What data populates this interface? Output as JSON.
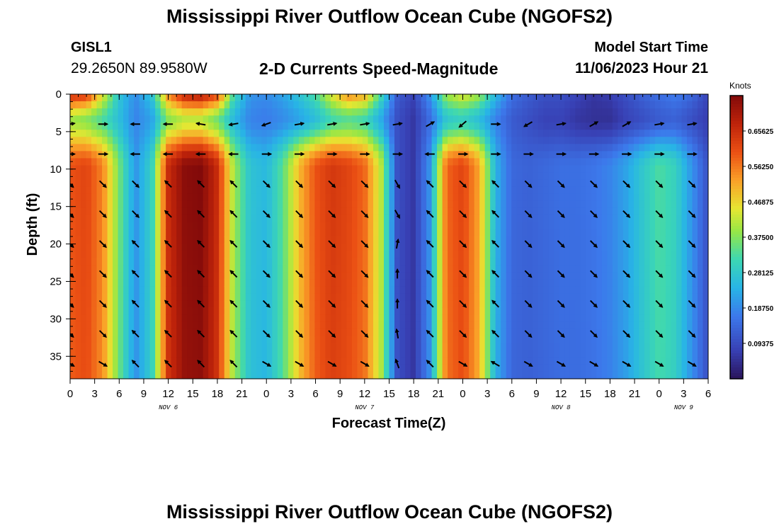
{
  "page": {
    "title": "Mississippi River Outflow Ocean Cube (NGOFS2)",
    "bottom_title": "Mississippi River Outflow Ocean Cube (NGOFS2)",
    "station_id": "GISL1",
    "station_location": "29.2650N  89.9580W",
    "chart_title": "2-D Currents Speed-Magnitude",
    "model_start_label": "Model Start Time",
    "model_start_time": "11/06/2023 Hour 21"
  },
  "chart_data": {
    "type": "heatmap",
    "title": "2-D Currents Speed-Magnitude",
    "xlabel": "Forecast Time(Z)",
    "ylabel": "Depth (ft)",
    "x_unit": "hours since 2023-11-06 00Z",
    "xlim": [
      0,
      78
    ],
    "ylim": [
      0,
      38
    ],
    "x_ticks": [
      0,
      3,
      6,
      9,
      12,
      15,
      18,
      21,
      24,
      27,
      30,
      33,
      36,
      39,
      42,
      45,
      48,
      51,
      54,
      57,
      60,
      63,
      66,
      69,
      72,
      75,
      78
    ],
    "x_tick_labels": [
      "0",
      "3",
      "6",
      "9",
      "12",
      "15",
      "18",
      "21",
      "0",
      "3",
      "6",
      "9",
      "12",
      "15",
      "18",
      "21",
      "0",
      "3",
      "6",
      "9",
      "12",
      "15",
      "18",
      "21",
      "0",
      "3",
      "6"
    ],
    "y_ticks": [
      0,
      5,
      10,
      15,
      20,
      25,
      30,
      35
    ],
    "y_tick_labels": [
      "0",
      "5",
      "10",
      "15",
      "20",
      "25",
      "30",
      "35"
    ],
    "date_labels": [
      {
        "hour": 12,
        "text": "NOV 6"
      },
      {
        "hour": 36,
        "text": "NOV 7"
      },
      {
        "hour": 60,
        "text": "NOV 8"
      },
      {
        "hour": 75,
        "text": "NOV 9"
      }
    ],
    "colorbar": {
      "unit": "Knots",
      "min": 0.0,
      "max": 0.75,
      "tick_values": [
        0.65625,
        0.5625,
        0.46875,
        0.375,
        0.28125,
        0.1875,
        0.09375
      ],
      "tick_labels": [
        "0.65625",
        "0.56250",
        "0.46875",
        "0.37500",
        "0.28125",
        "0.18750",
        "0.09375"
      ]
    },
    "times": [
      0,
      2,
      4,
      6,
      8,
      10,
      12,
      14,
      16,
      18,
      20,
      22,
      24,
      26,
      28,
      30,
      32,
      34,
      36,
      38,
      40,
      42,
      44,
      46,
      48,
      50,
      52,
      54,
      56,
      58,
      60,
      62,
      64,
      66,
      68,
      70,
      72,
      74,
      76,
      78
    ],
    "surface_speed": [
      0.66,
      0.64,
      0.45,
      0.27,
      0.19,
      0.27,
      0.55,
      0.68,
      0.7,
      0.62,
      0.32,
      0.2,
      0.19,
      0.22,
      0.27,
      0.33,
      0.45,
      0.55,
      0.52,
      0.32,
      0.12,
      0.08,
      0.2,
      0.4,
      0.45,
      0.4,
      0.25,
      0.15,
      0.12,
      0.1,
      0.1,
      0.08,
      0.06,
      0.07,
      0.1,
      0.13,
      0.15,
      0.17,
      0.14,
      0.08
    ],
    "near_surface_speed": [
      0.4,
      0.38,
      0.33,
      0.26,
      0.18,
      0.22,
      0.38,
      0.42,
      0.42,
      0.36,
      0.25,
      0.18,
      0.17,
      0.19,
      0.22,
      0.26,
      0.32,
      0.34,
      0.32,
      0.23,
      0.1,
      0.06,
      0.15,
      0.28,
      0.3,
      0.26,
      0.18,
      0.12,
      0.1,
      0.08,
      0.08,
      0.06,
      0.05,
      0.05,
      0.08,
      0.1,
      0.12,
      0.13,
      0.1,
      0.07
    ],
    "subsurface_speed": [
      0.6,
      0.62,
      0.55,
      0.36,
      0.2,
      0.3,
      0.66,
      0.74,
      0.75,
      0.66,
      0.4,
      0.27,
      0.25,
      0.34,
      0.5,
      0.6,
      0.64,
      0.62,
      0.58,
      0.42,
      0.1,
      0.06,
      0.2,
      0.58,
      0.62,
      0.52,
      0.24,
      0.14,
      0.13,
      0.14,
      0.15,
      0.15,
      0.16,
      0.18,
      0.22,
      0.28,
      0.33,
      0.3,
      0.2,
      0.1
    ],
    "vector_times": [
      0,
      4,
      8,
      12,
      16,
      20,
      24,
      28,
      32,
      36,
      40,
      44,
      48,
      52,
      56,
      60,
      64,
      68,
      72,
      76
    ],
    "vector_depths": [
      4,
      8,
      12,
      16,
      20,
      24,
      28,
      32,
      36
    ],
    "vector_direction_deg": {
      "depth_4": [
        80,
        90,
        270,
        270,
        280,
        260,
        250,
        80,
        80,
        80,
        80,
        60,
        230,
        90,
        240,
        80,
        60,
        60,
        80,
        80
      ],
      "depth_8": [
        90,
        90,
        270,
        270,
        270,
        270,
        90,
        90,
        90,
        90,
        90,
        270,
        90,
        90,
        90,
        90,
        90,
        90,
        90,
        90
      ],
      "depth_12": [
        135,
        135,
        135,
        315,
        315,
        315,
        135,
        135,
        135,
        135,
        150,
        315,
        135,
        315,
        135,
        135,
        135,
        135,
        135,
        135
      ],
      "depth_16": [
        135,
        135,
        135,
        315,
        315,
        315,
        135,
        135,
        135,
        135,
        150,
        315,
        135,
        315,
        135,
        135,
        135,
        135,
        135,
        135
      ],
      "depth_20": [
        135,
        135,
        315,
        315,
        315,
        315,
        135,
        135,
        135,
        135,
        10,
        315,
        135,
        315,
        135,
        135,
        135,
        135,
        135,
        135
      ],
      "depth_24": [
        135,
        135,
        315,
        315,
        315,
        315,
        135,
        135,
        135,
        135,
        0,
        315,
        135,
        315,
        135,
        135,
        135,
        135,
        135,
        135
      ],
      "depth_28": [
        135,
        135,
        315,
        315,
        315,
        315,
        135,
        135,
        135,
        135,
        0,
        315,
        135,
        315,
        135,
        135,
        135,
        135,
        135,
        135
      ],
      "depth_32": [
        135,
        135,
        315,
        315,
        315,
        315,
        135,
        135,
        135,
        135,
        350,
        315,
        135,
        315,
        135,
        135,
        135,
        135,
        135,
        135
      ],
      "depth_36": [
        120,
        120,
        315,
        315,
        315,
        315,
        120,
        120,
        120,
        120,
        340,
        315,
        120,
        300,
        120,
        120,
        120,
        120,
        120,
        120
      ]
    }
  }
}
